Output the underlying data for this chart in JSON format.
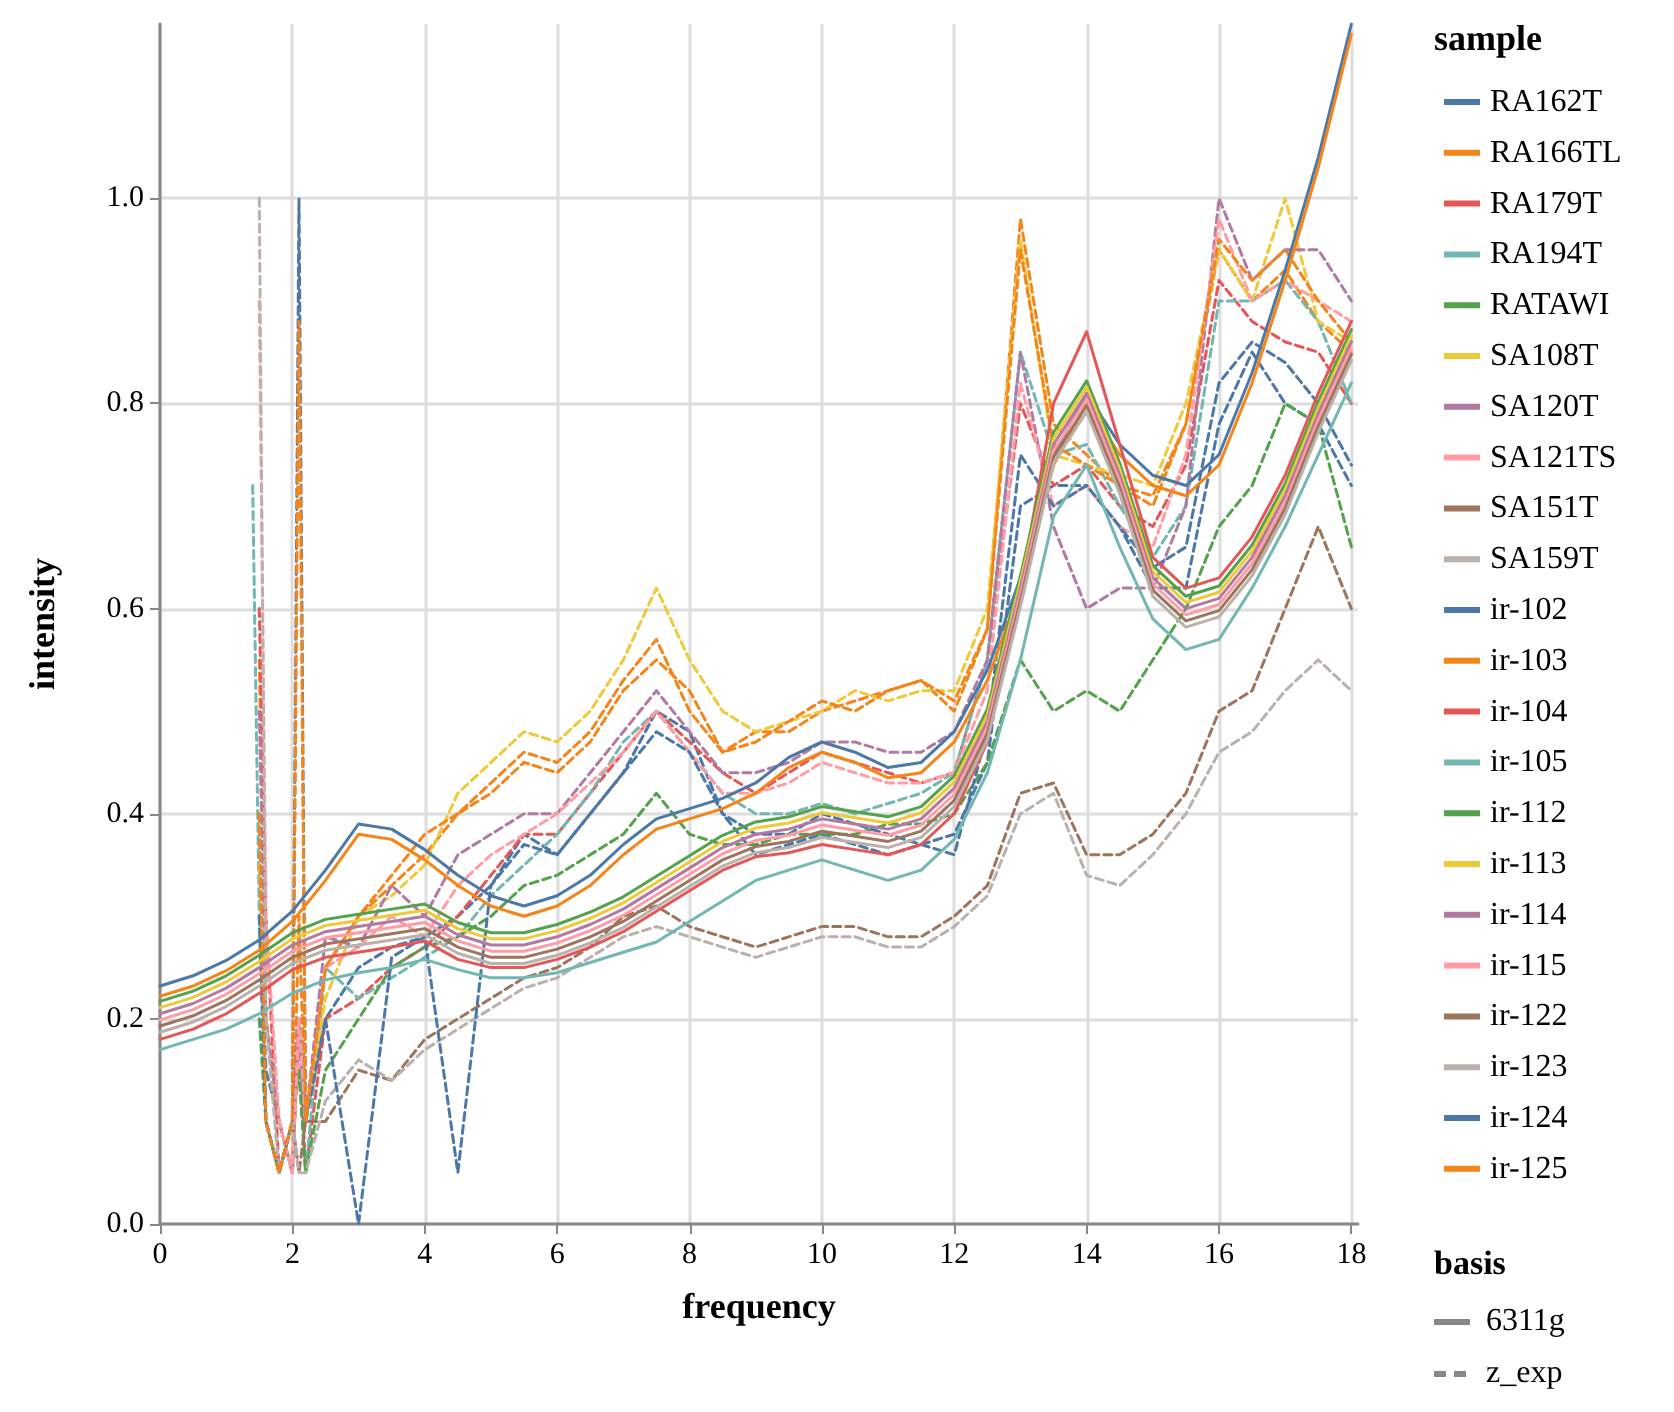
{
  "chart_data": {
    "type": "line",
    "xlabel": "frequency",
    "ylabel": "intensity",
    "legend_title": "sample",
    "legend": "right",
    "grid": true,
    "marker": "none",
    "annotations": [
      "basis",
      "6311g",
      "z_exp"
    ],
    "xlim": [
      0,
      18.1
    ],
    "xticks": [
      0,
      2,
      4,
      6,
      8,
      10,
      12,
      14,
      16,
      18
    ],
    "ylim": [
      0,
      1.17
    ],
    "yticks": [
      {
        "value": 0,
        "label": "0.0"
      },
      0.2,
      0.4,
      0.6,
      0.8,
      {
        "value": 1,
        "label": "1.0"
      }
    ],
    "x": [
      0,
      0.5,
      1,
      1.5,
      2,
      2.5,
      3,
      3.5,
      4,
      4.5,
      5,
      5.5,
      6,
      6.5,
      7,
      7.5,
      8,
      8.5,
      9,
      9.5,
      10,
      10.5,
      11,
      11.5,
      12,
      12.5,
      13,
      13.5,
      14,
      14.5,
      15,
      15.5,
      16,
      16.5,
      17,
      17.5,
      18
    ],
    "series": [
      {
        "name": "RA162T",
        "color": "#4c78a8",
        "line_style": "solid",
        "values": [
          0.232,
          0.242,
          0.257,
          0.277,
          0.305,
          0.345,
          0.39,
          0.385,
          0.365,
          0.34,
          0.32,
          0.31,
          0.32,
          0.34,
          0.37,
          0.395,
          0.405,
          0.415,
          0.43,
          0.455,
          0.47,
          0.46,
          0.445,
          0.45,
          0.48,
          0.54,
          0.63,
          0.75,
          0.81,
          0.76,
          0.73,
          0.72,
          0.75,
          0.83,
          0.93,
          1.04,
          1.17
        ]
      },
      {
        "name": "RA166TL",
        "color": "#f58518",
        "line_style": "solid",
        "values": [
          0.222,
          0.232,
          0.247,
          0.267,
          0.295,
          0.335,
          0.38,
          0.375,
          0.355,
          0.33,
          0.31,
          0.3,
          0.31,
          0.33,
          0.36,
          0.385,
          0.395,
          0.405,
          0.42,
          0.445,
          0.46,
          0.45,
          0.435,
          0.44,
          0.47,
          0.53,
          0.62,
          0.74,
          0.8,
          0.75,
          0.72,
          0.71,
          0.74,
          0.82,
          0.92,
          1.03,
          1.16
        ]
      },
      {
        "name": "RA179T",
        "color": "#e45756",
        "line_style": "solid",
        "values": [
          0.18,
          0.19,
          0.205,
          0.225,
          0.248,
          0.26,
          0.265,
          0.27,
          0.276,
          0.258,
          0.25,
          0.25,
          0.258,
          0.27,
          0.285,
          0.305,
          0.325,
          0.345,
          0.358,
          0.362,
          0.37,
          0.365,
          0.36,
          0.37,
          0.4,
          0.47,
          0.62,
          0.8,
          0.87,
          0.76,
          0.65,
          0.62,
          0.63,
          0.67,
          0.73,
          0.81,
          0.88
        ]
      },
      {
        "name": "RA194T",
        "color": "#72b7b2",
        "line_style": "solid",
        "values": [
          0.17,
          0.18,
          0.19,
          0.205,
          0.225,
          0.238,
          0.245,
          0.25,
          0.258,
          0.248,
          0.24,
          0.24,
          0.245,
          0.255,
          0.265,
          0.275,
          0.295,
          0.315,
          0.335,
          0.345,
          0.355,
          0.345,
          0.335,
          0.345,
          0.375,
          0.44,
          0.55,
          0.69,
          0.74,
          0.66,
          0.59,
          0.56,
          0.57,
          0.62,
          0.68,
          0.75,
          0.82
        ]
      },
      {
        "name": "RATAWI",
        "color": "#54a24b",
        "line_style": "solid",
        "values": [
          0.217,
          0.227,
          0.242,
          0.262,
          0.284,
          0.297,
          0.302,
          0.307,
          0.312,
          0.294,
          0.284,
          0.284,
          0.292,
          0.304,
          0.319,
          0.339,
          0.359,
          0.379,
          0.392,
          0.397,
          0.407,
          0.402,
          0.397,
          0.407,
          0.437,
          0.502,
          0.632,
          0.772,
          0.822,
          0.742,
          0.642,
          0.612,
          0.622,
          0.662,
          0.722,
          0.802,
          0.872
        ]
      },
      {
        "name": "SA108T",
        "color": "#eeca3b",
        "line_style": "solid",
        "values": [
          0.211,
          0.221,
          0.236,
          0.256,
          0.278,
          0.291,
          0.296,
          0.301,
          0.306,
          0.288,
          0.278,
          0.278,
          0.286,
          0.298,
          0.313,
          0.333,
          0.353,
          0.373,
          0.386,
          0.391,
          0.401,
          0.396,
          0.391,
          0.401,
          0.431,
          0.496,
          0.626,
          0.766,
          0.816,
          0.736,
          0.636,
          0.606,
          0.616,
          0.656,
          0.716,
          0.796,
          0.866
        ]
      },
      {
        "name": "SA120T",
        "color": "#b279a2",
        "line_style": "solid",
        "values": [
          0.205,
          0.215,
          0.23,
          0.25,
          0.272,
          0.285,
          0.29,
          0.295,
          0.3,
          0.282,
          0.272,
          0.272,
          0.28,
          0.292,
          0.307,
          0.327,
          0.347,
          0.367,
          0.38,
          0.385,
          0.395,
          0.39,
          0.385,
          0.395,
          0.425,
          0.49,
          0.62,
          0.76,
          0.81,
          0.73,
          0.63,
          0.6,
          0.61,
          0.65,
          0.71,
          0.79,
          0.86
        ]
      },
      {
        "name": "SA121TS",
        "color": "#ff9da6",
        "line_style": "solid",
        "values": [
          0.199,
          0.209,
          0.224,
          0.244,
          0.266,
          0.279,
          0.284,
          0.289,
          0.294,
          0.276,
          0.266,
          0.266,
          0.274,
          0.286,
          0.301,
          0.321,
          0.341,
          0.361,
          0.374,
          0.379,
          0.389,
          0.384,
          0.379,
          0.389,
          0.419,
          0.484,
          0.614,
          0.754,
          0.804,
          0.724,
          0.624,
          0.594,
          0.604,
          0.644,
          0.704,
          0.784,
          0.854
        ]
      },
      {
        "name": "SA151T",
        "color": "#9d755d",
        "line_style": "solid",
        "values": [
          0.193,
          0.203,
          0.218,
          0.238,
          0.26,
          0.273,
          0.278,
          0.283,
          0.288,
          0.27,
          0.26,
          0.26,
          0.268,
          0.28,
          0.295,
          0.315,
          0.335,
          0.355,
          0.368,
          0.373,
          0.383,
          0.378,
          0.373,
          0.383,
          0.413,
          0.478,
          0.608,
          0.748,
          0.798,
          0.718,
          0.618,
          0.588,
          0.598,
          0.638,
          0.698,
          0.778,
          0.848
        ]
      },
      {
        "name": "SA159T",
        "color": "#bab0ac",
        "line_style": "solid",
        "values": [
          0.187,
          0.197,
          0.212,
          0.232,
          0.254,
          0.267,
          0.272,
          0.277,
          0.282,
          0.264,
          0.254,
          0.254,
          0.262,
          0.274,
          0.289,
          0.309,
          0.329,
          0.349,
          0.362,
          0.367,
          0.377,
          0.372,
          0.367,
          0.377,
          0.407,
          0.472,
          0.602,
          0.742,
          0.792,
          0.712,
          0.612,
          0.582,
          0.592,
          0.632,
          0.692,
          0.772,
          0.842
        ]
      },
      {
        "name": "ir-102",
        "color": "#4c78a8",
        "line_style": "dashed",
        "x": [
          1.5,
          1.6,
          1.8,
          2,
          2.1,
          2.2,
          2.5,
          3,
          3.5,
          4,
          4.5,
          5,
          5.5,
          6,
          6.5,
          7,
          7.5,
          8,
          8.5,
          9,
          9.5,
          10,
          10.5,
          11,
          11.5,
          12,
          12.5,
          13,
          13.5,
          14,
          14.5,
          15,
          15.5,
          16,
          16.5,
          17,
          17.5,
          18
        ],
        "values": [
          0.3,
          0.15,
          0.1,
          0.05,
          0.2,
          0.1,
          0.2,
          0.25,
          0.27,
          0.28,
          0.3,
          0.33,
          0.38,
          0.36,
          0.4,
          0.44,
          0.5,
          0.48,
          0.4,
          0.36,
          0.37,
          0.38,
          0.37,
          0.36,
          0.37,
          0.38,
          0.45,
          0.7,
          0.72,
          0.72,
          0.68,
          0.62,
          0.62,
          0.78,
          0.85,
          0.8,
          0.78,
          0.72
        ]
      },
      {
        "name": "ir-103",
        "color": "#f58518",
        "line_style": "dashed",
        "x": [
          1.5,
          1.6,
          1.8,
          2,
          2.1,
          2.2,
          2.5,
          3,
          3.5,
          4,
          4.5,
          5,
          5.5,
          6,
          6.5,
          7,
          7.5,
          8,
          8.5,
          9,
          9.5,
          10,
          10.5,
          11,
          11.5,
          12,
          12.5,
          13,
          13.5,
          14,
          14.5,
          15,
          15.5,
          16,
          16.5,
          17,
          17.5,
          18
        ],
        "values": [
          0.55,
          0.2,
          0.1,
          0.05,
          0.3,
          0.1,
          0.25,
          0.3,
          0.33,
          0.36,
          0.4,
          0.42,
          0.45,
          0.44,
          0.47,
          0.52,
          0.55,
          0.52,
          0.46,
          0.48,
          0.48,
          0.5,
          0.51,
          0.52,
          0.53,
          0.5,
          0.58,
          0.98,
          0.78,
          0.75,
          0.72,
          0.7,
          0.78,
          0.95,
          0.9,
          0.93,
          0.88,
          0.85
        ]
      },
      {
        "name": "ir-104",
        "color": "#e45756",
        "line_style": "dashed",
        "x": [
          1.5,
          1.6,
          1.8,
          2,
          2.1,
          2.2,
          2.5,
          3,
          3.5,
          4,
          4.5,
          5,
          5.5,
          6,
          6.5,
          7,
          7.5,
          8,
          8.5,
          9,
          9.5,
          10,
          10.5,
          11,
          11.5,
          12,
          12.5,
          13,
          13.5,
          14,
          14.5,
          15,
          15.5,
          16,
          16.5,
          17,
          17.5,
          18
        ],
        "values": [
          0.6,
          0.3,
          0.05,
          0.1,
          0.2,
          0.05,
          0.2,
          0.22,
          0.25,
          0.27,
          0.3,
          0.34,
          0.38,
          0.38,
          0.42,
          0.46,
          0.5,
          0.47,
          0.44,
          0.42,
          0.44,
          0.46,
          0.45,
          0.44,
          0.43,
          0.44,
          0.55,
          0.8,
          0.72,
          0.74,
          0.7,
          0.68,
          0.74,
          0.92,
          0.88,
          0.86,
          0.85,
          0.8
        ]
      },
      {
        "name": "ir-105",
        "color": "#72b7b2",
        "line_style": "dashed",
        "x": [
          1.4,
          1.5,
          1.6,
          1.8,
          2,
          2.1,
          2.2,
          2.5,
          3,
          3.5,
          4,
          4.5,
          5,
          5.5,
          6,
          6.5,
          7,
          7.5,
          8,
          8.5,
          9,
          9.5,
          10,
          10.5,
          11,
          11.5,
          12,
          12.5,
          13,
          13.5,
          14,
          14.5,
          15,
          15.5,
          16,
          16.5,
          17,
          17.5,
          18
        ],
        "values": [
          0.72,
          0.3,
          0.1,
          0.05,
          0.1,
          0.15,
          0.05,
          0.25,
          0.22,
          0.24,
          0.26,
          0.28,
          0.32,
          0.35,
          0.38,
          0.42,
          0.47,
          0.5,
          0.46,
          0.42,
          0.4,
          0.4,
          0.41,
          0.4,
          0.41,
          0.42,
          0.44,
          0.55,
          0.85,
          0.75,
          0.76,
          0.7,
          0.65,
          0.7,
          0.9,
          0.9,
          0.92,
          0.88,
          0.8
        ]
      },
      {
        "name": "ir-112",
        "color": "#54a24b",
        "line_style": "dashed",
        "x": [
          1.5,
          1.6,
          1.8,
          2,
          2.1,
          2.2,
          2.5,
          3,
          3.5,
          4,
          4.5,
          5,
          5.5,
          6,
          6.5,
          7,
          7.5,
          8,
          8.5,
          9,
          9.5,
          10,
          10.5,
          11,
          11.5,
          12,
          12.5,
          13,
          13.5,
          14,
          14.5,
          15,
          15.5,
          16,
          16.5,
          17,
          17.5,
          18
        ],
        "values": [
          0.2,
          0.1,
          0.05,
          0.1,
          0.15,
          0.05,
          0.15,
          0.2,
          0.25,
          0.27,
          0.28,
          0.3,
          0.33,
          0.34,
          0.36,
          0.38,
          0.42,
          0.38,
          0.37,
          0.37,
          0.38,
          0.38,
          0.38,
          0.39,
          0.39,
          0.4,
          0.45,
          0.55,
          0.5,
          0.52,
          0.5,
          0.55,
          0.6,
          0.68,
          0.72,
          0.8,
          0.78,
          0.66
        ]
      },
      {
        "name": "ir-113",
        "color": "#eeca3b",
        "line_style": "dashed",
        "x": [
          1.5,
          1.6,
          1.8,
          2,
          2.1,
          2.2,
          2.5,
          3,
          3.5,
          4,
          4.5,
          5,
          5.5,
          6,
          6.5,
          7,
          7.5,
          8,
          8.5,
          9,
          9.5,
          10,
          10.5,
          11,
          11.5,
          12,
          12.5,
          13,
          13.5,
          14,
          14.5,
          15,
          15.5,
          16,
          16.5,
          17,
          17.5,
          18
        ],
        "values": [
          0.35,
          0.2,
          0.1,
          0.05,
          0.2,
          0.1,
          0.22,
          0.3,
          0.32,
          0.35,
          0.42,
          0.45,
          0.48,
          0.47,
          0.5,
          0.55,
          0.62,
          0.55,
          0.5,
          0.48,
          0.49,
          0.5,
          0.52,
          0.51,
          0.52,
          0.52,
          0.6,
          0.96,
          0.75,
          0.74,
          0.73,
          0.72,
          0.8,
          0.95,
          0.9,
          1.0,
          0.88,
          0.86
        ]
      },
      {
        "name": "ir-114",
        "color": "#b279a2",
        "line_style": "dashed",
        "x": [
          1.5,
          1.6,
          1.8,
          2,
          2.1,
          2.2,
          2.5,
          3,
          3.5,
          4,
          4.5,
          5,
          5.5,
          6,
          6.5,
          7,
          7.5,
          8,
          8.5,
          9,
          9.5,
          10,
          10.5,
          11,
          11.5,
          12,
          12.5,
          13,
          13.5,
          14,
          14.5,
          15,
          15.5,
          16,
          16.5,
          17,
          17.5,
          18
        ],
        "values": [
          0.5,
          0.2,
          0.1,
          0.05,
          0.2,
          0.1,
          0.28,
          0.27,
          0.33,
          0.3,
          0.36,
          0.38,
          0.4,
          0.4,
          0.44,
          0.48,
          0.52,
          0.48,
          0.44,
          0.44,
          0.45,
          0.47,
          0.47,
          0.46,
          0.46,
          0.48,
          0.55,
          0.85,
          0.68,
          0.6,
          0.62,
          0.62,
          0.7,
          1.0,
          0.92,
          0.95,
          0.95,
          0.9
        ]
      },
      {
        "name": "ir-115",
        "color": "#ff9da6",
        "line_style": "dashed",
        "x": [
          1.5,
          1.6,
          1.8,
          2,
          2.1,
          2.2,
          2.5,
          3,
          3.5,
          4,
          4.5,
          5,
          5.5,
          6,
          6.5,
          7,
          7.5,
          8,
          8.5,
          9,
          9.5,
          10,
          10.5,
          11,
          11.5,
          12,
          12.5,
          13,
          13.5,
          14,
          14.5,
          15,
          15.5,
          16,
          16.5,
          17,
          17.5,
          18
        ],
        "values": [
          0.9,
          0.3,
          0.1,
          0.05,
          0.2,
          0.1,
          0.25,
          0.27,
          0.3,
          0.28,
          0.33,
          0.36,
          0.38,
          0.4,
          0.43,
          0.46,
          0.5,
          0.46,
          0.42,
          0.42,
          0.43,
          0.45,
          0.44,
          0.43,
          0.43,
          0.44,
          0.52,
          0.82,
          0.7,
          0.72,
          0.68,
          0.66,
          0.75,
          0.98,
          0.9,
          0.92,
          0.9,
          0.88
        ]
      },
      {
        "name": "ir-122",
        "color": "#9d755d",
        "line_style": "dashed",
        "x": [
          1.5,
          1.6,
          1.8,
          2,
          2.1,
          2.2,
          2.5,
          3,
          3.5,
          4,
          4.5,
          5,
          5.5,
          6,
          6.5,
          7,
          7.5,
          8,
          8.5,
          9,
          9.5,
          10,
          10.5,
          11,
          11.5,
          12,
          12.5,
          13,
          13.5,
          14,
          14.5,
          15,
          15.5,
          16,
          16.5,
          17,
          17.5,
          18
        ],
        "values": [
          0.4,
          0.1,
          0.05,
          0.1,
          0.05,
          0.1,
          0.1,
          0.15,
          0.14,
          0.18,
          0.2,
          0.22,
          0.24,
          0.25,
          0.27,
          0.3,
          0.31,
          0.29,
          0.28,
          0.27,
          0.28,
          0.29,
          0.29,
          0.28,
          0.28,
          0.3,
          0.33,
          0.42,
          0.43,
          0.36,
          0.36,
          0.38,
          0.42,
          0.5,
          0.52,
          0.6,
          0.68,
          0.6
        ]
      },
      {
        "name": "ir-123",
        "color": "#bab0ac",
        "line_style": "dashed",
        "x": [
          1.5,
          1.6,
          1.8,
          2,
          2.1,
          2.2,
          2.5,
          3,
          3.5,
          4,
          4.5,
          5,
          5.5,
          6,
          6.5,
          7,
          7.5,
          8,
          8.5,
          9,
          9.5,
          10,
          10.5,
          11,
          11.5,
          12,
          12.5,
          13,
          13.5,
          14,
          14.5,
          15,
          15.5,
          16,
          16.5,
          17,
          17.5,
          18
        ],
        "values": [
          1.0,
          0.2,
          0.05,
          0.1,
          0.05,
          0.05,
          0.12,
          0.16,
          0.14,
          0.17,
          0.19,
          0.21,
          0.23,
          0.24,
          0.26,
          0.28,
          0.29,
          0.28,
          0.27,
          0.26,
          0.27,
          0.28,
          0.28,
          0.27,
          0.27,
          0.29,
          0.32,
          0.4,
          0.42,
          0.34,
          0.33,
          0.36,
          0.4,
          0.46,
          0.48,
          0.52,
          0.55,
          0.52
        ]
      },
      {
        "name": "ir-124",
        "color": "#4c78a8",
        "line_style": "dashed",
        "x": [
          1.5,
          1.6,
          1.8,
          2,
          2.1,
          2.2,
          2.5,
          3,
          3.5,
          4,
          4.5,
          5,
          5.5,
          6,
          6.5,
          7,
          7.5,
          8,
          8.5,
          9,
          9.5,
          10,
          10.5,
          11,
          11.5,
          12,
          12.5,
          13,
          13.5,
          14,
          14.5,
          15,
          15.5,
          16,
          16.5,
          17,
          17.5,
          18
        ],
        "values": [
          0.3,
          0.1,
          0.05,
          0.1,
          1.0,
          0.1,
          0.2,
          0.0,
          0.26,
          0.28,
          0.05,
          0.33,
          0.37,
          0.36,
          0.4,
          0.44,
          0.48,
          0.46,
          0.4,
          0.38,
          0.38,
          0.4,
          0.39,
          0.38,
          0.37,
          0.36,
          0.48,
          0.75,
          0.7,
          0.72,
          0.68,
          0.64,
          0.66,
          0.82,
          0.86,
          0.84,
          0.8,
          0.74
        ]
      },
      {
        "name": "ir-125",
        "color": "#f58518",
        "line_style": "dashed",
        "x": [
          1.5,
          1.6,
          1.8,
          2,
          2.1,
          2.2,
          2.5,
          3,
          3.5,
          4,
          4.5,
          5,
          5.5,
          6,
          6.5,
          7,
          7.5,
          8,
          8.5,
          9,
          9.5,
          10,
          10.5,
          11,
          11.5,
          12,
          12.5,
          13,
          13.5,
          14,
          14.5,
          15,
          15.5,
          16,
          16.5,
          17,
          17.5,
          18
        ],
        "values": [
          0.4,
          0.1,
          0.05,
          0.1,
          0.88,
          0.1,
          0.25,
          0.3,
          0.34,
          0.38,
          0.4,
          0.43,
          0.46,
          0.45,
          0.48,
          0.53,
          0.57,
          0.5,
          0.46,
          0.47,
          0.49,
          0.51,
          0.5,
          0.52,
          0.53,
          0.51,
          0.58,
          0.95,
          0.76,
          0.74,
          0.72,
          0.71,
          0.78,
          0.96,
          0.92,
          0.95,
          0.9,
          0.86
        ]
      }
    ]
  }
}
